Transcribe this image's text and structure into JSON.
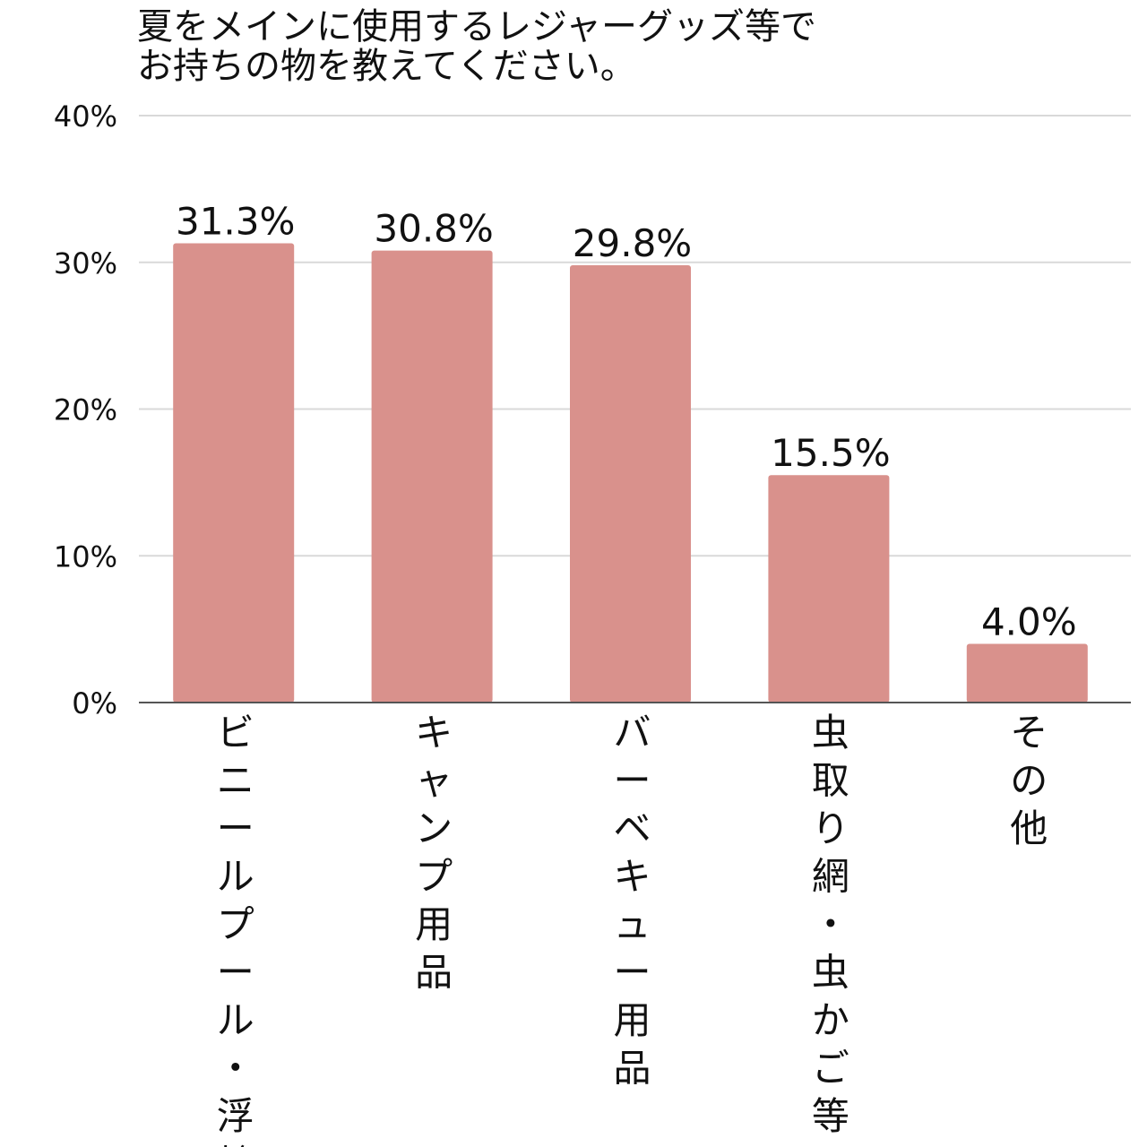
{
  "chart_data": {
    "type": "bar",
    "title_lines": [
      "夏をメインに使用するレジャーグッズ等で",
      "お持ちの物を教えてください。"
    ],
    "categories": [
      "ビニールプール・浮輪",
      "キャンプ用品",
      "バーベキュー用品",
      "虫取り網・虫かご等",
      "その他"
    ],
    "values": [
      31.3,
      30.8,
      29.8,
      15.5,
      4.0
    ],
    "data_labels": [
      "31.3%",
      "30.8%",
      "29.8%",
      "15.5%",
      "4.0%"
    ],
    "ylim": [
      0,
      40
    ],
    "yticks": [
      0,
      10,
      20,
      30,
      40
    ],
    "ytick_labels": [
      "0%",
      "10%",
      "20%",
      "30%",
      "40%"
    ],
    "grid": true,
    "bar_color": "#d9918c",
    "grid_color": "#d9d9d9",
    "axis_color": "#555555"
  }
}
